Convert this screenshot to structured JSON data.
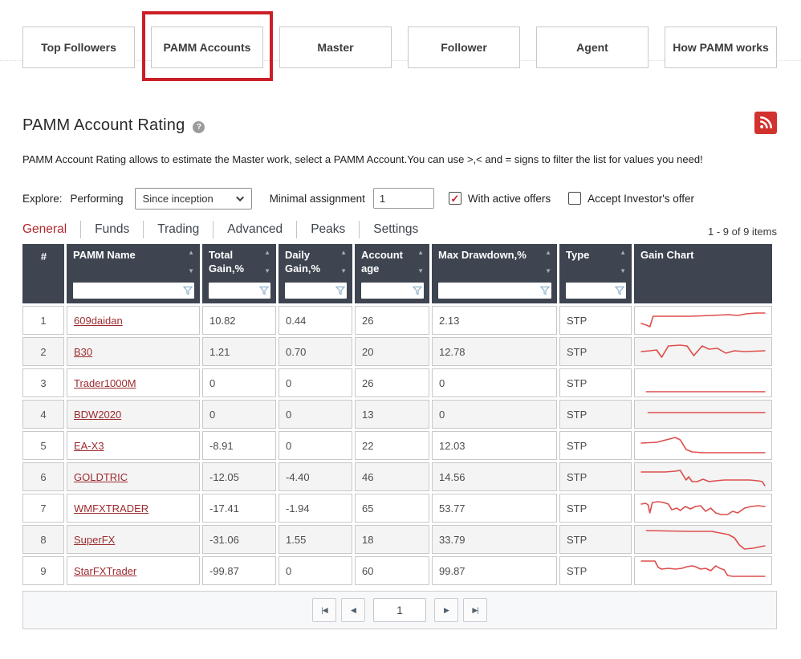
{
  "nav": {
    "buttons": [
      {
        "label": "Top Followers",
        "highlighted": false
      },
      {
        "label": "PAMM Accounts",
        "highlighted": true
      },
      {
        "label": "Master",
        "highlighted": false
      },
      {
        "label": "Follower",
        "highlighted": false
      },
      {
        "label": "Agent",
        "highlighted": false
      },
      {
        "label": "How PAMM works",
        "highlighted": false
      }
    ]
  },
  "header": {
    "title": "PAMM Account Rating",
    "help_glyph": "?"
  },
  "description": "PAMM Account Rating allows to estimate the Master work, select a PAMM Account.You can use >,< and = signs to filter the list for values you need!",
  "filters": {
    "explore_label": "Explore:",
    "performing_label": "Performing",
    "period_value": "Since inception",
    "minimal_assignment_label": "Minimal assignment",
    "minimal_assignment_value": "1",
    "with_active_offers_label": "With active offers",
    "with_active_offers_checked": true,
    "accept_investors_label": "Accept Investor's offer",
    "accept_investors_checked": false
  },
  "tabs": [
    {
      "label": "General",
      "active": true
    },
    {
      "label": "Funds",
      "active": false
    },
    {
      "label": "Trading",
      "active": false
    },
    {
      "label": "Advanced",
      "active": false
    },
    {
      "label": "Peaks",
      "active": false
    },
    {
      "label": "Settings",
      "active": false
    }
  ],
  "items_count": "1 - 9 of 9 items",
  "icons": {
    "sort_asc": "▲",
    "sort_desc": "▼",
    "check": "✓",
    "pg_first": "|◀",
    "pg_prev": "◀",
    "pg_next": "▶",
    "pg_last": "▶|"
  },
  "colors": {
    "accent_red": "#cb1f27",
    "header_bg": "#3e4551",
    "link_red": "#9c2b2f",
    "spark_red": "#dd4f4d",
    "active_tab_red": "#b2282d"
  },
  "table": {
    "columns": [
      {
        "label": "#",
        "sortable": false,
        "filterable": false
      },
      {
        "label": "PAMM Name",
        "sortable": true,
        "filterable": true
      },
      {
        "label": "Total Gain,%",
        "sortable": true,
        "filterable": true
      },
      {
        "label": "Daily Gain,%",
        "sortable": true,
        "filterable": true
      },
      {
        "label": "Account age",
        "sortable": true,
        "filterable": true
      },
      {
        "label": "Max Drawdown,%",
        "sortable": true,
        "filterable": true
      },
      {
        "label": "Type",
        "sortable": true,
        "filterable": true
      },
      {
        "label": "Gain Chart",
        "sortable": false,
        "filterable": false
      }
    ],
    "rows": [
      {
        "num": "1",
        "name": "609daidan",
        "total_gain": "10.82",
        "daily_gain": "0.44",
        "account_age": "26",
        "max_drawdown": "2.13",
        "type": "STP",
        "spark": [
          [
            2,
            19
          ],
          [
            8,
            21
          ],
          [
            12,
            23
          ],
          [
            16,
            10
          ],
          [
            34,
            10
          ],
          [
            60,
            10
          ],
          [
            85,
            9
          ],
          [
            105,
            8
          ],
          [
            116,
            9
          ],
          [
            126,
            7
          ],
          [
            138,
            6
          ],
          [
            148,
            6
          ]
        ]
      },
      {
        "num": "2",
        "name": "B30",
        "total_gain": "1.21",
        "daily_gain": "0.70",
        "account_age": "20",
        "max_drawdown": "12.78",
        "type": "STP",
        "spark": [
          [
            2,
            15
          ],
          [
            12,
            14
          ],
          [
            20,
            13
          ],
          [
            26,
            22
          ],
          [
            34,
            8
          ],
          [
            48,
            7
          ],
          [
            56,
            8
          ],
          [
            64,
            20
          ],
          [
            74,
            8
          ],
          [
            82,
            12
          ],
          [
            92,
            11
          ],
          [
            102,
            17
          ],
          [
            112,
            14
          ],
          [
            124,
            15
          ],
          [
            148,
            14
          ]
        ]
      },
      {
        "num": "3",
        "name": "Trader1000M",
        "total_gain": "0",
        "daily_gain": "0",
        "account_age": "26",
        "max_drawdown": "0",
        "type": "STP",
        "spark": [
          [
            8,
            26
          ],
          [
            148,
            26
          ]
        ]
      },
      {
        "num": "4",
        "name": "BDW2020",
        "total_gain": "0",
        "daily_gain": "0",
        "account_age": "13",
        "max_drawdown": "0",
        "type": "STP",
        "spark": [
          [
            10,
            13
          ],
          [
            148,
            13
          ]
        ]
      },
      {
        "num": "5",
        "name": "EA-X3",
        "total_gain": "-8.91",
        "daily_gain": "0",
        "account_age": "22",
        "max_drawdown": "12.03",
        "type": "STP",
        "spark": [
          [
            2,
            12
          ],
          [
            20,
            11
          ],
          [
            35,
            7
          ],
          [
            42,
            5
          ],
          [
            48,
            8
          ],
          [
            55,
            20
          ],
          [
            62,
            23
          ],
          [
            75,
            24
          ],
          [
            148,
            24
          ]
        ]
      },
      {
        "num": "6",
        "name": "GOLDTRIC",
        "total_gain": "-12.05",
        "daily_gain": "-4.40",
        "account_age": "46",
        "max_drawdown": "14.56",
        "type": "STP",
        "spark": [
          [
            2,
            9
          ],
          [
            30,
            9
          ],
          [
            42,
            8
          ],
          [
            48,
            7
          ],
          [
            52,
            14
          ],
          [
            55,
            19
          ],
          [
            58,
            15
          ],
          [
            62,
            21
          ],
          [
            68,
            21
          ],
          [
            75,
            18
          ],
          [
            82,
            21
          ],
          [
            90,
            20
          ],
          [
            100,
            19
          ],
          [
            115,
            19
          ],
          [
            130,
            19
          ],
          [
            140,
            20
          ],
          [
            145,
            21
          ],
          [
            148,
            26
          ]
        ]
      },
      {
        "num": "7",
        "name": "WMFXTRADER",
        "total_gain": "-17.41",
        "daily_gain": "-1.94",
        "account_age": "65",
        "max_drawdown": "53.77",
        "type": "STP",
        "spark": [
          [
            2,
            10
          ],
          [
            7,
            9
          ],
          [
            10,
            11
          ],
          [
            12,
            21
          ],
          [
            15,
            8
          ],
          [
            22,
            7
          ],
          [
            28,
            8
          ],
          [
            34,
            10
          ],
          [
            38,
            17
          ],
          [
            44,
            15
          ],
          [
            48,
            18
          ],
          [
            54,
            13
          ],
          [
            60,
            16
          ],
          [
            66,
            13
          ],
          [
            72,
            12
          ],
          [
            78,
            19
          ],
          [
            84,
            15
          ],
          [
            90,
            21
          ],
          [
            96,
            23
          ],
          [
            104,
            23
          ],
          [
            110,
            19
          ],
          [
            116,
            21
          ],
          [
            124,
            15
          ],
          [
            132,
            13
          ],
          [
            140,
            12
          ],
          [
            148,
            13
          ]
        ]
      },
      {
        "num": "8",
        "name": "SuperFX",
        "total_gain": "-31.06",
        "daily_gain": "1.55",
        "account_age": "18",
        "max_drawdown": "33.79",
        "type": "STP",
        "spark": [
          [
            8,
            4
          ],
          [
            60,
            5
          ],
          [
            85,
            5
          ],
          [
            95,
            7
          ],
          [
            105,
            9
          ],
          [
            112,
            13
          ],
          [
            118,
            22
          ],
          [
            124,
            27
          ],
          [
            134,
            26
          ],
          [
            148,
            23
          ]
        ]
      },
      {
        "num": "9",
        "name": "StarFXTrader",
        "total_gain": "-99.87",
        "daily_gain": "0",
        "account_age": "60",
        "max_drawdown": "99.87",
        "type": "STP",
        "spark": [
          [
            2,
            3
          ],
          [
            18,
            3
          ],
          [
            22,
            11
          ],
          [
            26,
            13
          ],
          [
            34,
            12
          ],
          [
            42,
            13
          ],
          [
            50,
            12
          ],
          [
            56,
            10
          ],
          [
            62,
            9
          ],
          [
            66,
            10
          ],
          [
            72,
            13
          ],
          [
            78,
            12
          ],
          [
            84,
            15
          ],
          [
            90,
            9
          ],
          [
            95,
            12
          ],
          [
            100,
            14
          ],
          [
            104,
            21
          ],
          [
            110,
            22
          ],
          [
            148,
            22
          ]
        ]
      }
    ]
  },
  "pagination": {
    "page_value": "1"
  }
}
